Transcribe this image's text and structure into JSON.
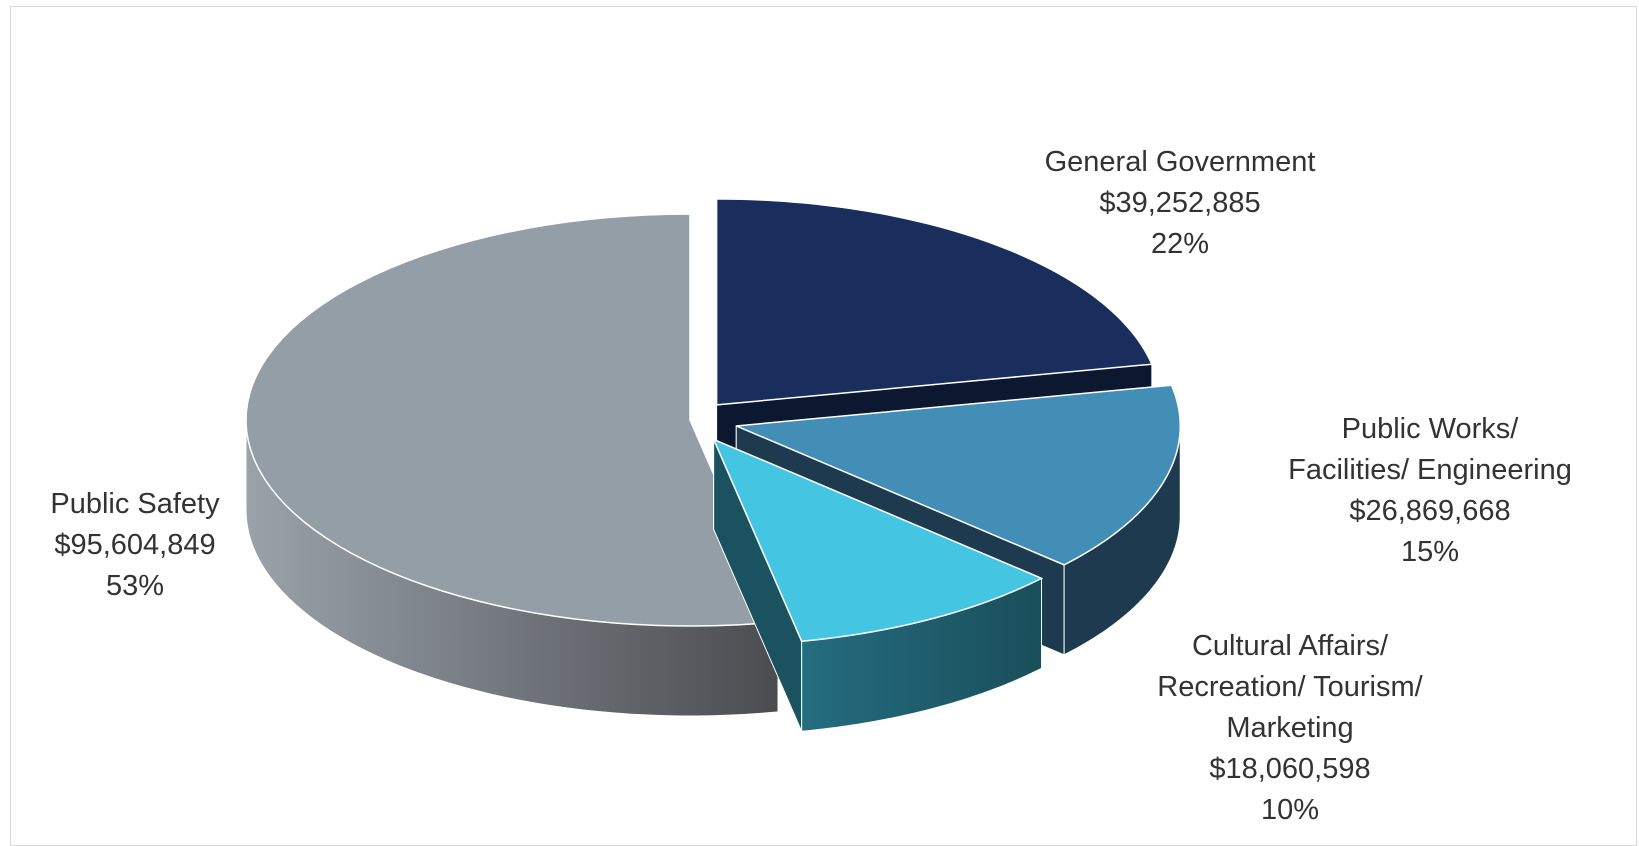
{
  "chart_data": {
    "type": "pie",
    "style": "3d-exploded",
    "title": "",
    "slices": [
      {
        "label": "General Government",
        "value_text": "$39,252,885",
        "value": 39252885,
        "percent_text": "22%",
        "percent": 22,
        "color": "#1a2e5e",
        "side_color": "#0c1730"
      },
      {
        "label": "Public Works/ Facilities/ Engineering",
        "label_lines": [
          "Public Works/",
          "Facilities/ Engineering"
        ],
        "value_text": "$26,869,668",
        "value": 26869668,
        "percent_text": "15%",
        "percent": 15,
        "color": "#438eb6",
        "side_color": "#1e3a4f"
      },
      {
        "label": "Cultural Affairs/ Recreation/ Tourism/ Marketing",
        "label_lines": [
          "Cultural Affairs/",
          "Recreation/ Tourism/",
          "Marketing"
        ],
        "value_text": "$18,060,598",
        "value": 18060598,
        "percent_text": "10%",
        "percent": 10,
        "color": "#44c6e2",
        "side_color": "#1b5260"
      },
      {
        "label": "Public Safety",
        "value_text": "$95,604,849",
        "value": 95604849,
        "percent_text": "53%",
        "percent": 53,
        "color": "#939ea7",
        "side_color": "#6e757c"
      }
    ]
  }
}
